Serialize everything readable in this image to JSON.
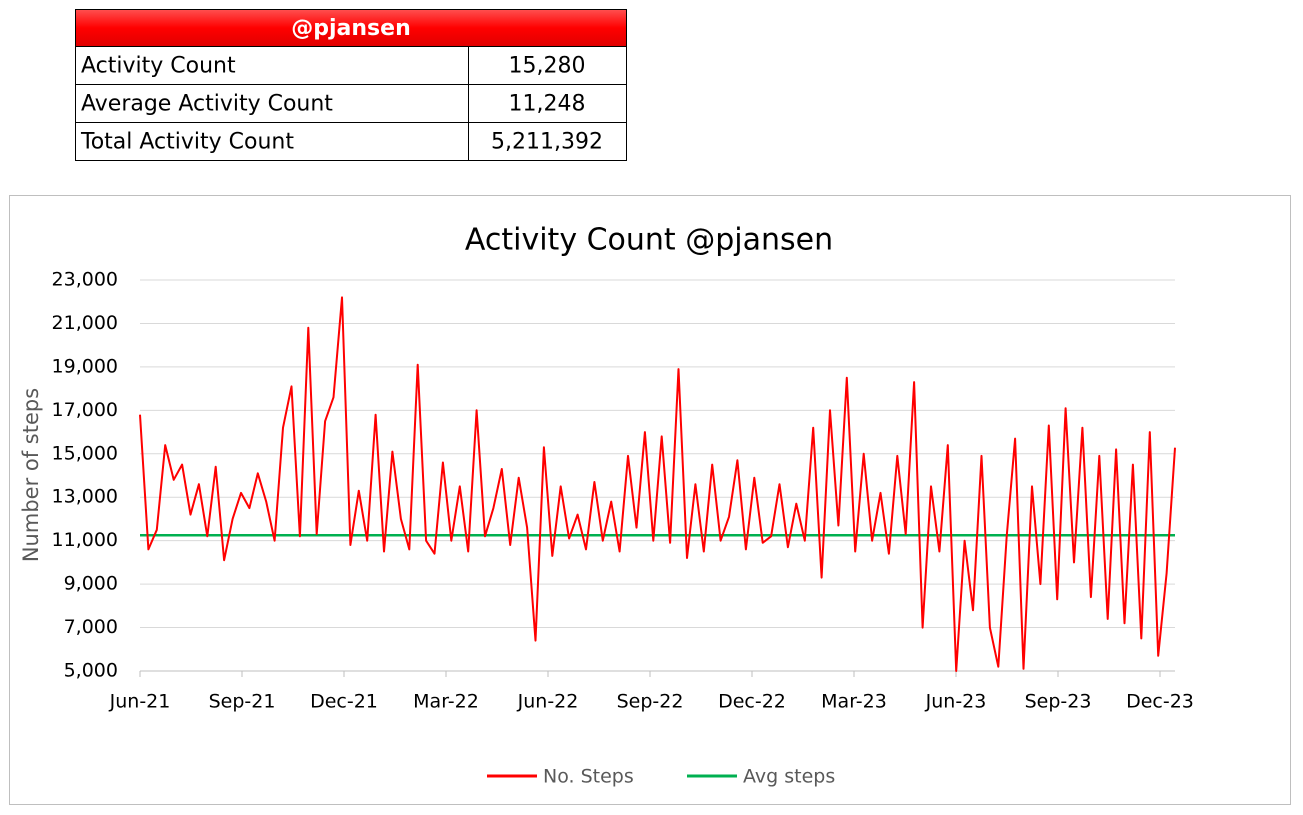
{
  "table": {
    "header": "@pjansen",
    "rows": [
      [
        "Activity Count",
        "15,280"
      ],
      [
        "Average Activity Count",
        "11,248"
      ],
      [
        "Total Activity Count",
        "5,211,392"
      ]
    ]
  },
  "chart_data": {
    "type": "line",
    "title": "Activity Count @pjansen",
    "y_label": "Number of steps",
    "xticks": [
      "Jun-21",
      "Sep-21",
      "Dec-21",
      "Mar-22",
      "Jun-22",
      "Sep-22",
      "Dec-22",
      "Mar-23",
      "Jun-23",
      "Sep-23",
      "Dec-23"
    ],
    "ylim": [
      5000,
      23000
    ],
    "yticks": [
      {
        "value": 5000,
        "label": "5,000"
      },
      {
        "value": 7000,
        "label": "7,000"
      },
      {
        "value": 9000,
        "label": "9,000"
      },
      {
        "value": 11000,
        "label": "11,000"
      },
      {
        "value": 13000,
        "label": "13,000"
      },
      {
        "value": 15000,
        "label": "15,000"
      },
      {
        "value": 17000,
        "label": "17,000"
      },
      {
        "value": 19000,
        "label": "19,000"
      },
      {
        "value": 21000,
        "label": "21,000"
      },
      {
        "value": 23000,
        "label": "23,000"
      }
    ],
    "grid": true,
    "legend": "bottom",
    "series": [
      {
        "name": "No. Steps",
        "color": "#ff0000",
        "values": [
          16800,
          10600,
          11500,
          15400,
          13800,
          14500,
          12200,
          13600,
          11200,
          14400,
          10100,
          12000,
          13200,
          12500,
          14100,
          12800,
          11000,
          16200,
          18100,
          11200,
          20800,
          11300,
          16500,
          17600,
          22200,
          10800,
          13300,
          11000,
          16800,
          10500,
          15100,
          12000,
          10600,
          19100,
          11000,
          10400,
          14600,
          11000,
          13500,
          10500,
          17000,
          11200,
          12500,
          14300,
          10800,
          13900,
          11600,
          6400,
          15300,
          10300,
          13500,
          11100,
          12200,
          10600,
          13700,
          11000,
          12800,
          10500,
          14900,
          11600,
          16000,
          11000,
          15800,
          10900,
          18900,
          10200,
          13600,
          10500,
          14500,
          11000,
          12100,
          14700,
          10600,
          13900,
          10900,
          11200,
          13600,
          10700,
          12700,
          11000,
          16200,
          9300,
          17000,
          11700,
          18500,
          10500,
          15000,
          11000,
          13200,
          10400,
          14900,
          11300,
          18300,
          7000,
          13500,
          10500,
          15400,
          5000,
          11000,
          7800,
          14900,
          7000,
          5200,
          11200,
          15700,
          5100,
          13500,
          9000,
          16300,
          8300,
          17100,
          10000,
          16200,
          8400,
          14900,
          7400,
          15200,
          7200,
          14500,
          6500,
          16000,
          5700,
          9500,
          15280
        ]
      },
      {
        "name": "Avg steps",
        "color": "#00b050",
        "values": [
          11248,
          11248
        ]
      }
    ]
  }
}
